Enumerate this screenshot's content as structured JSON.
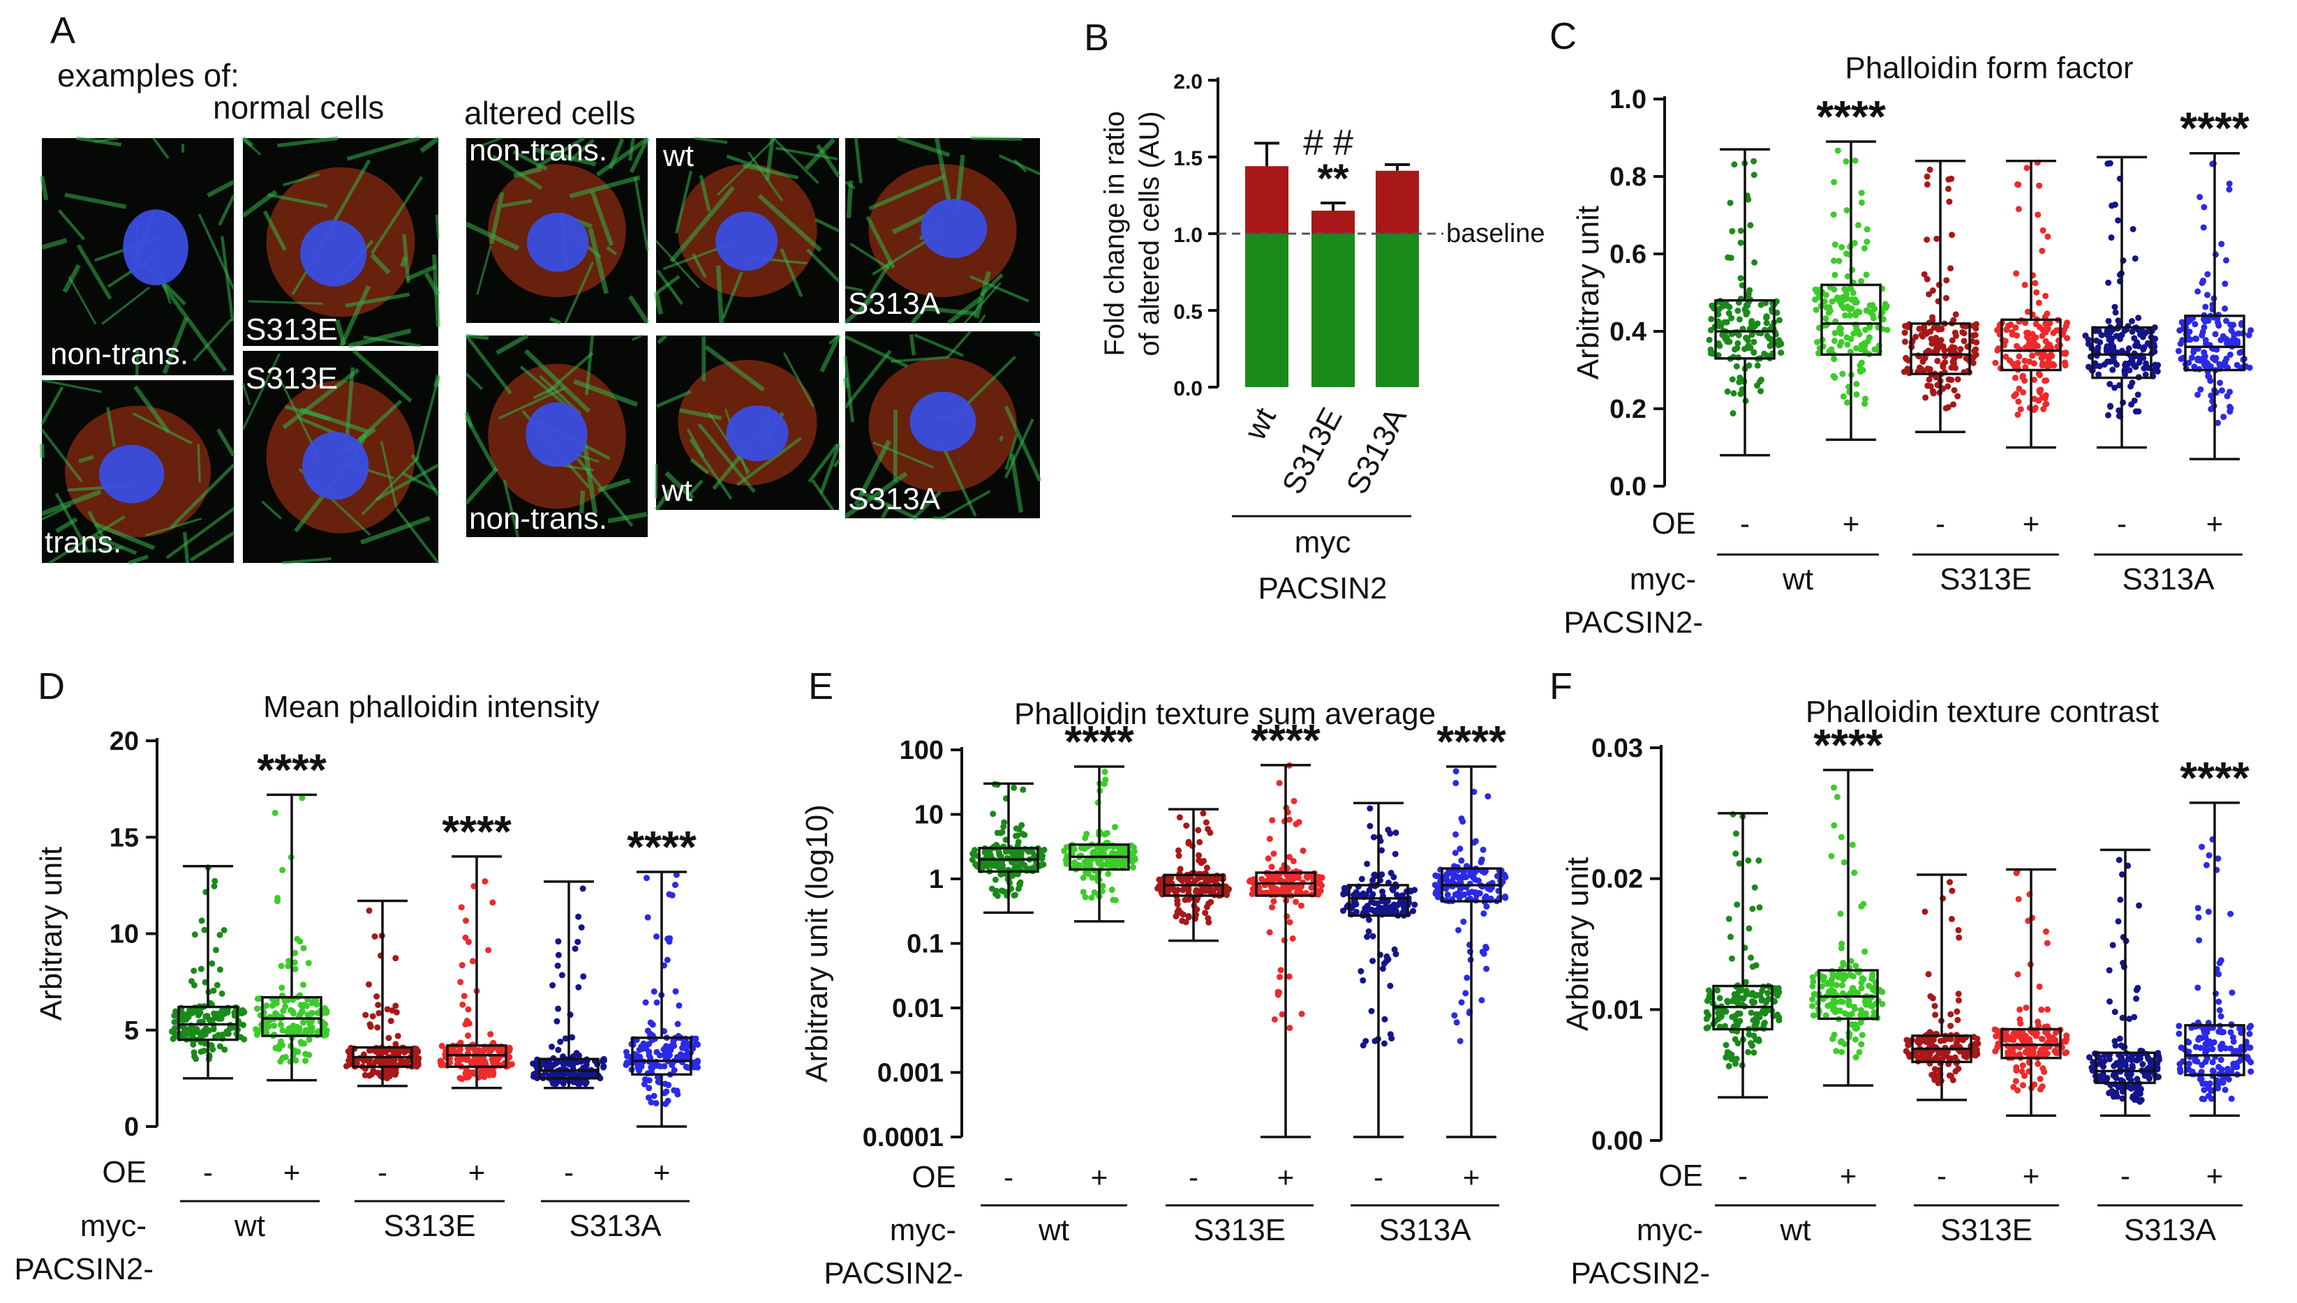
{
  "panel_letters": [
    "A",
    "B",
    "C",
    "D",
    "E",
    "F"
  ],
  "panel_a": {
    "header_examples": "examples of:",
    "header_normal": "normal cells",
    "header_altered": "altered cells",
    "tiles": [
      {
        "caption": "non-trans.",
        "style": "normal"
      },
      {
        "caption": "S313E",
        "style": "normal-red"
      },
      {
        "caption": "trans.",
        "style": "normal-red"
      },
      {
        "caption": "S313E",
        "style": "normal-red"
      },
      {
        "caption": "non-trans.",
        "style": "altered"
      },
      {
        "caption": "non-trans.",
        "style": "altered"
      },
      {
        "caption": "wt",
        "style": "altered-red"
      },
      {
        "caption": "wt",
        "style": "altered-red"
      },
      {
        "caption": "S313A",
        "style": "altered-red"
      },
      {
        "caption": "S313A",
        "style": "altered-red"
      }
    ]
  },
  "group_axis": {
    "oe_label": "OE",
    "myc_label": "myc-",
    "pacsin_label": "PACSIN2-",
    "oe_marks": [
      "-",
      "+",
      "-",
      "+",
      "-",
      "+"
    ],
    "groups": [
      "wt",
      "S313E",
      "S313A"
    ]
  },
  "chart_data": [
    {
      "panel": "B",
      "type": "bar",
      "ylabel": "Fold change in ratio of altered cells (AU)",
      "ylabel_lines": [
        "Fold change in ratio",
        "of altered cells (AU)"
      ],
      "ylim": [
        0,
        2.0
      ],
      "yticks": [
        "0.0",
        "0.5",
        "1.0",
        "1.5",
        "2.0"
      ],
      "categories": [
        "wt",
        "S313E",
        "S313A"
      ],
      "values": [
        1.44,
        1.15,
        1.41
      ],
      "errors": [
        0.15,
        0.05,
        0.04
      ],
      "baseline": 1.0,
      "baseline_label": "baseline",
      "annotations": [
        "",
        "**",
        ""
      ],
      "annotations_hash": [
        "",
        "##",
        ""
      ],
      "group_label_line1": "myc",
      "group_label_line2": "PACSIN2",
      "colors": {
        "above": "#a81818",
        "below": "#1a8a1a"
      }
    },
    {
      "panel": "C",
      "type": "box",
      "title": "Phalloidin form factor",
      "ylabel": "Arbitrary unit",
      "ylim": [
        0,
        1.0
      ],
      "yticks": [
        "0.0",
        "0.2",
        "0.4",
        "0.6",
        "0.8",
        "1.0"
      ],
      "scale": "linear",
      "series": [
        {
          "name": "wt -",
          "min": 0.08,
          "q1": 0.33,
          "median": 0.4,
          "q3": 0.48,
          "max": 0.87,
          "sig": ""
        },
        {
          "name": "wt +",
          "min": 0.12,
          "q1": 0.34,
          "median": 0.42,
          "q3": 0.52,
          "max": 0.89,
          "sig": "****"
        },
        {
          "name": "S313E -",
          "min": 0.14,
          "q1": 0.29,
          "median": 0.34,
          "q3": 0.42,
          "max": 0.84,
          "sig": ""
        },
        {
          "name": "S313E +",
          "min": 0.1,
          "q1": 0.3,
          "median": 0.35,
          "q3": 0.43,
          "max": 0.84,
          "sig": ""
        },
        {
          "name": "S313A -",
          "min": 0.1,
          "q1": 0.28,
          "median": 0.34,
          "q3": 0.41,
          "max": 0.85,
          "sig": ""
        },
        {
          "name": "S313A +",
          "min": 0.07,
          "q1": 0.3,
          "median": 0.36,
          "q3": 0.44,
          "max": 0.86,
          "sig": "****"
        }
      ]
    },
    {
      "panel": "D",
      "type": "box",
      "title": "Mean phalloidin intensity",
      "ylabel": "Arbitrary unit",
      "ylim": [
        0,
        20
      ],
      "yticks": [
        "0",
        "5",
        "10",
        "15",
        "20"
      ],
      "scale": "linear",
      "series": [
        {
          "name": "wt -",
          "min": 2.5,
          "q1": 4.5,
          "median": 5.3,
          "q3": 6.2,
          "max": 13.5,
          "sig": ""
        },
        {
          "name": "wt +",
          "min": 2.4,
          "q1": 4.7,
          "median": 5.6,
          "q3": 6.7,
          "max": 17.2,
          "sig": "****"
        },
        {
          "name": "S313E -",
          "min": 2.1,
          "q1": 3.1,
          "median": 3.6,
          "q3": 4.1,
          "max": 11.7,
          "sig": ""
        },
        {
          "name": "S313E +",
          "min": 2.0,
          "q1": 3.1,
          "median": 3.7,
          "q3": 4.2,
          "max": 14.0,
          "sig": "****"
        },
        {
          "name": "S313A -",
          "min": 2.0,
          "q1": 2.5,
          "median": 2.9,
          "q3": 3.5,
          "max": 12.7,
          "sig": ""
        },
        {
          "name": "S313A +",
          "min": 0.0,
          "q1": 2.7,
          "median": 3.4,
          "q3": 4.6,
          "max": 13.2,
          "sig": "****"
        }
      ]
    },
    {
      "panel": "E",
      "type": "box",
      "title": "Phalloidin texture sum average",
      "ylabel": "Arbitrary unit (log10)",
      "ylim": [
        0.0001,
        100
      ],
      "yticks": [
        "0.0001",
        "0.001",
        "0.01",
        "0.1",
        "1",
        "10",
        "100"
      ],
      "scale": "log",
      "series": [
        {
          "name": "wt -",
          "min": 0.3,
          "q1": 1.3,
          "median": 2.0,
          "q3": 3.0,
          "max": 30,
          "sig": ""
        },
        {
          "name": "wt +",
          "min": 0.22,
          "q1": 1.4,
          "median": 2.2,
          "q3": 3.4,
          "max": 55,
          "sig": "****"
        },
        {
          "name": "S313E -",
          "min": 0.11,
          "q1": 0.55,
          "median": 0.8,
          "q3": 1.15,
          "max": 12,
          "sig": ""
        },
        {
          "name": "S313E +",
          "min": 0.0001,
          "q1": 0.55,
          "median": 0.85,
          "q3": 1.25,
          "max": 58,
          "sig": "****"
        },
        {
          "name": "S313A -",
          "min": 0.0001,
          "q1": 0.27,
          "median": 0.5,
          "q3": 0.8,
          "max": 15,
          "sig": ""
        },
        {
          "name": "S313A +",
          "min": 0.0001,
          "q1": 0.45,
          "median": 0.8,
          "q3": 1.45,
          "max": 55,
          "sig": "****"
        }
      ]
    },
    {
      "panel": "F",
      "type": "box",
      "title": "Phalloidin texture contrast",
      "ylabel": "Arbitrary unit",
      "ylim": [
        0,
        0.03
      ],
      "yticks": [
        "0.00",
        "0.01",
        "0.02",
        "0.03"
      ],
      "scale": "linear",
      "series": [
        {
          "name": "wt -",
          "min": 0.0033,
          "q1": 0.0085,
          "median": 0.0102,
          "q3": 0.0118,
          "max": 0.025,
          "sig": ""
        },
        {
          "name": "wt +",
          "min": 0.0042,
          "q1": 0.0093,
          "median": 0.011,
          "q3": 0.013,
          "max": 0.0283,
          "sig": "****"
        },
        {
          "name": "S313E -",
          "min": 0.0031,
          "q1": 0.006,
          "median": 0.007,
          "q3": 0.008,
          "max": 0.0203,
          "sig": ""
        },
        {
          "name": "S313E +",
          "min": 0.0019,
          "q1": 0.0063,
          "median": 0.0073,
          "q3": 0.0085,
          "max": 0.0207,
          "sig": ""
        },
        {
          "name": "S313A -",
          "min": 0.0019,
          "q1": 0.0044,
          "median": 0.0053,
          "q3": 0.0067,
          "max": 0.0222,
          "sig": ""
        },
        {
          "name": "S313A +",
          "min": 0.0019,
          "q1": 0.005,
          "median": 0.0065,
          "q3": 0.0088,
          "max": 0.0258,
          "sig": "****"
        }
      ]
    }
  ],
  "colors": {
    "wt-": "#1a8a1a",
    "wt+": "#3ccc2a",
    "S313E-": "#a81818",
    "S313E+": "#ee2a2a",
    "S313A-": "#14148c",
    "S313A+": "#2a2ae8"
  }
}
